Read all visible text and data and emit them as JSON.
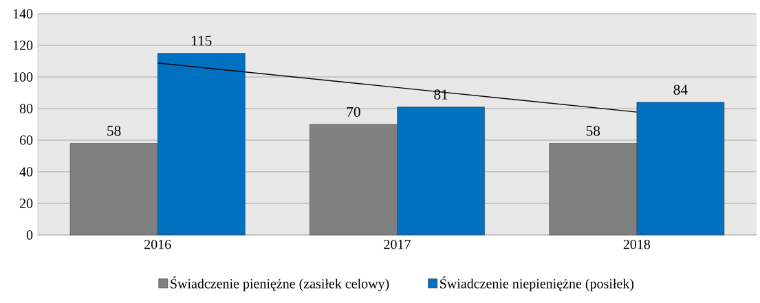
{
  "chart_data": {
    "type": "bar",
    "categories": [
      "2016",
      "2017",
      "2018"
    ],
    "series": [
      {
        "name": "Świadczenie pieniężne (zasiłek celowy)",
        "color": "#808080",
        "values": [
          58,
          70,
          58
        ],
        "value_labels": [
          "58",
          "70",
          "58"
        ]
      },
      {
        "name": "Świadczenie niepieniężne (posiłek)",
        "color": "#0070c0",
        "values": [
          115,
          81,
          84
        ],
        "value_labels": [
          "115",
          "81",
          "84"
        ]
      },
      {
        "type": "line",
        "color": "#000000",
        "values": [
          108.8,
          93.3,
          77.8
        ]
      }
    ],
    "ylim": [
      0,
      140
    ],
    "yticks": [
      0,
      20,
      40,
      60,
      80,
      100,
      120,
      140
    ],
    "grid": "y",
    "legend": "bottom"
  }
}
